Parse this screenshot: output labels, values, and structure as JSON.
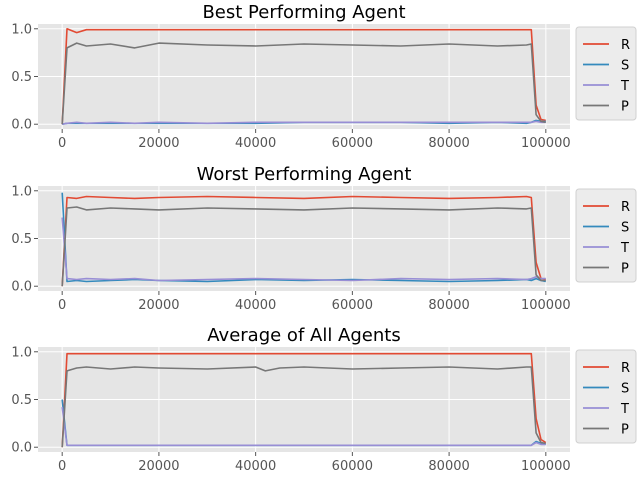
{
  "chart_data": [
    {
      "type": "line",
      "title": "Best Performing Agent",
      "xlabel": "",
      "ylabel": "",
      "xlim": [
        -5000,
        105000
      ],
      "ylim": [
        -0.05,
        1.05
      ],
      "x_ticks": [
        0,
        20000,
        40000,
        60000,
        80000,
        100000
      ],
      "x_tick_labels": [
        "0",
        "20000",
        "40000",
        "60000",
        "80000",
        "100000"
      ],
      "y_ticks": [
        0.0,
        0.5,
        1.0
      ],
      "y_tick_labels": [
        "0.0",
        "0.5",
        "1.0"
      ],
      "grid": true,
      "legend_position": "right, outside plot",
      "x": [
        0,
        1000,
        3000,
        5000,
        10000,
        15000,
        20000,
        30000,
        40000,
        50000,
        60000,
        70000,
        80000,
        90000,
        96000,
        97000,
        98000,
        99000,
        100000
      ],
      "series": [
        {
          "name": "R",
          "color": "#E24A33",
          "values": [
            0.0,
            1.0,
            0.96,
            0.99,
            0.99,
            0.99,
            0.99,
            0.99,
            0.99,
            0.99,
            0.99,
            0.99,
            0.99,
            0.99,
            0.99,
            0.99,
            0.2,
            0.05,
            0.04
          ]
        },
        {
          "name": "S",
          "color": "#348ABD",
          "values": [
            0.0,
            0.01,
            0.01,
            0.01,
            0.01,
            0.01,
            0.01,
            0.01,
            0.01,
            0.02,
            0.02,
            0.02,
            0.01,
            0.02,
            0.01,
            0.02,
            0.04,
            0.03,
            0.03
          ]
        },
        {
          "name": "T",
          "color": "#988ED5",
          "values": [
            0.0,
            0.01,
            0.02,
            0.01,
            0.02,
            0.01,
            0.02,
            0.01,
            0.02,
            0.02,
            0.02,
            0.02,
            0.02,
            0.02,
            0.02,
            0.02,
            0.03,
            0.02,
            0.02
          ]
        },
        {
          "name": "P",
          "color": "#777777",
          "values": [
            0.0,
            0.8,
            0.85,
            0.82,
            0.84,
            0.8,
            0.85,
            0.83,
            0.82,
            0.84,
            0.83,
            0.82,
            0.84,
            0.82,
            0.83,
            0.84,
            0.1,
            0.03,
            0.02
          ]
        }
      ]
    },
    {
      "type": "line",
      "title": "Worst Performing Agent",
      "xlabel": "",
      "ylabel": "",
      "xlim": [
        -5000,
        105000
      ],
      "ylim": [
        -0.05,
        1.05
      ],
      "x_ticks": [
        0,
        20000,
        40000,
        60000,
        80000,
        100000
      ],
      "x_tick_labels": [
        "0",
        "20000",
        "40000",
        "60000",
        "80000",
        "100000"
      ],
      "y_ticks": [
        0.0,
        0.5,
        1.0
      ],
      "y_tick_labels": [
        "0.0",
        "0.5",
        "1.0"
      ],
      "grid": true,
      "legend_position": "right, outside plot",
      "x": [
        0,
        1000,
        3000,
        5000,
        10000,
        15000,
        20000,
        30000,
        40000,
        50000,
        60000,
        70000,
        80000,
        90000,
        96000,
        97000,
        98000,
        99000,
        100000
      ],
      "series": [
        {
          "name": "R",
          "color": "#E24A33",
          "values": [
            0.0,
            0.93,
            0.92,
            0.94,
            0.93,
            0.92,
            0.93,
            0.94,
            0.93,
            0.92,
            0.94,
            0.93,
            0.92,
            0.93,
            0.94,
            0.93,
            0.25,
            0.08,
            0.07
          ]
        },
        {
          "name": "S",
          "color": "#348ABD",
          "values": [
            0.98,
            0.05,
            0.06,
            0.05,
            0.06,
            0.07,
            0.06,
            0.05,
            0.07,
            0.06,
            0.07,
            0.06,
            0.05,
            0.06,
            0.07,
            0.06,
            0.08,
            0.06,
            0.05
          ]
        },
        {
          "name": "T",
          "color": "#988ED5",
          "values": [
            0.72,
            0.08,
            0.07,
            0.08,
            0.07,
            0.08,
            0.06,
            0.07,
            0.08,
            0.07,
            0.06,
            0.08,
            0.07,
            0.08,
            0.07,
            0.08,
            0.1,
            0.08,
            0.08
          ]
        },
        {
          "name": "P",
          "color": "#777777",
          "values": [
            0.0,
            0.82,
            0.83,
            0.8,
            0.82,
            0.81,
            0.8,
            0.82,
            0.81,
            0.8,
            0.82,
            0.81,
            0.8,
            0.82,
            0.81,
            0.82,
            0.12,
            0.06,
            0.06
          ]
        }
      ]
    },
    {
      "type": "line",
      "title": "Average of All Agents",
      "xlabel": "",
      "ylabel": "",
      "xlim": [
        -5000,
        105000
      ],
      "ylim": [
        -0.05,
        1.05
      ],
      "x_ticks": [
        0,
        20000,
        40000,
        60000,
        80000,
        100000
      ],
      "x_tick_labels": [
        "0",
        "20000",
        "40000",
        "60000",
        "80000",
        "100000"
      ],
      "y_ticks": [
        0.0,
        0.5,
        1.0
      ],
      "y_tick_labels": [
        "0.0",
        "0.5",
        "1.0"
      ],
      "grid": true,
      "legend_position": "right, outside plot",
      "x": [
        0,
        1000,
        3000,
        5000,
        10000,
        15000,
        20000,
        30000,
        40000,
        42000,
        45000,
        50000,
        60000,
        70000,
        80000,
        90000,
        96000,
        97000,
        98000,
        99000,
        100000
      ],
      "series": [
        {
          "name": "R",
          "color": "#E24A33",
          "values": [
            0.0,
            0.98,
            0.98,
            0.98,
            0.98,
            0.98,
            0.98,
            0.98,
            0.98,
            0.98,
            0.98,
            0.98,
            0.98,
            0.98,
            0.98,
            0.98,
            0.98,
            0.98,
            0.3,
            0.08,
            0.05
          ]
        },
        {
          "name": "S",
          "color": "#348ABD",
          "values": [
            0.5,
            0.02,
            0.02,
            0.02,
            0.02,
            0.02,
            0.02,
            0.02,
            0.02,
            0.02,
            0.02,
            0.02,
            0.02,
            0.02,
            0.02,
            0.02,
            0.02,
            0.02,
            0.06,
            0.04,
            0.03
          ]
        },
        {
          "name": "T",
          "color": "#988ED5",
          "values": [
            0.42,
            0.02,
            0.02,
            0.02,
            0.02,
            0.02,
            0.02,
            0.02,
            0.02,
            0.02,
            0.02,
            0.02,
            0.02,
            0.02,
            0.02,
            0.02,
            0.02,
            0.02,
            0.05,
            0.03,
            0.03
          ]
        },
        {
          "name": "P",
          "color": "#777777",
          "values": [
            0.0,
            0.8,
            0.83,
            0.84,
            0.82,
            0.84,
            0.83,
            0.82,
            0.84,
            0.8,
            0.83,
            0.84,
            0.82,
            0.83,
            0.84,
            0.82,
            0.84,
            0.84,
            0.15,
            0.05,
            0.04
          ]
        }
      ]
    }
  ]
}
